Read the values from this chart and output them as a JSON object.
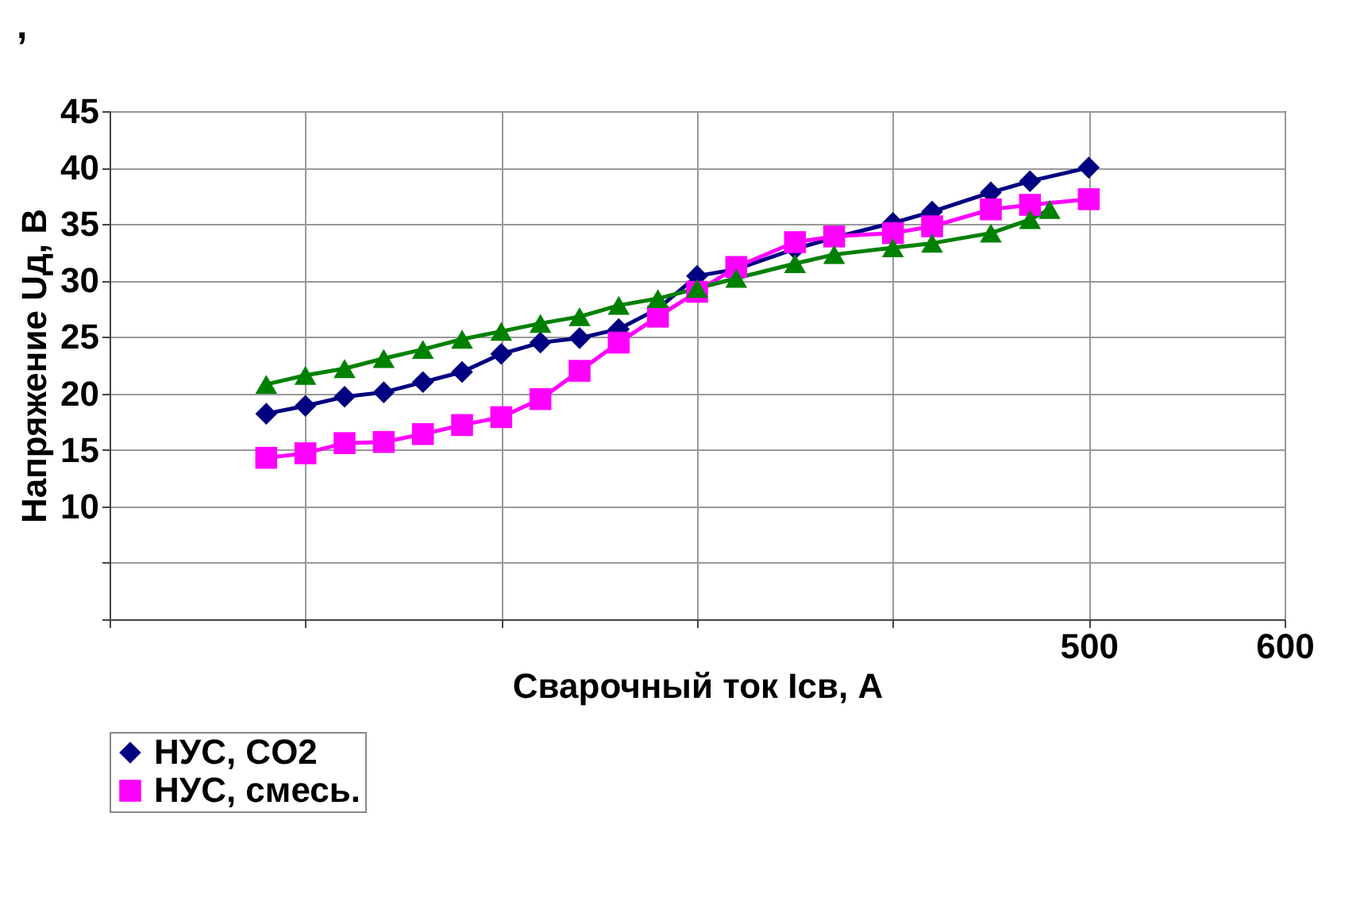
{
  "chart_data": {
    "type": "line",
    "title": ",",
    "xlabel": "Сварочный ток Iсв, А",
    "ylabel": "Напряжение Uд, В",
    "xlim": [
      0,
      600
    ],
    "xticks": [
      {
        "value": 0,
        "label": null
      },
      {
        "value": 100,
        "label": null
      },
      {
        "value": 200,
        "label": null
      },
      {
        "value": 300,
        "label": null
      },
      {
        "value": 400,
        "label": null
      },
      500,
      600
    ],
    "ylim": [
      0,
      45
    ],
    "yticks": [
      {
        "value": 0,
        "label": null
      },
      {
        "value": 5,
        "label": null
      },
      10,
      15,
      20,
      25,
      30,
      35,
      40,
      45
    ],
    "grid": true,
    "legend": "bottom",
    "line_style": "solid",
    "series": [
      {
        "name": "НУС, CO2",
        "color": "#000080",
        "marker": "diamond",
        "x": [
          80,
          100,
          120,
          140,
          160,
          180,
          200,
          220,
          240,
          260,
          280,
          300,
          320,
          350,
          370,
          400,
          420,
          450,
          470,
          500
        ],
        "values": [
          18.2,
          18.9,
          19.7,
          20.1,
          21.0,
          21.9,
          23.5,
          24.5,
          24.9,
          25.7,
          27.5,
          30.4,
          31.0,
          32.8,
          33.8,
          35.1,
          36.1,
          37.8,
          38.8,
          40.0
        ]
      },
      {
        "name": "НУС, смесь.",
        "color": "#ff00ff",
        "marker": "square",
        "x": [
          80,
          100,
          120,
          140,
          160,
          180,
          200,
          220,
          240,
          260,
          280,
          300,
          320,
          350,
          370,
          400,
          420,
          450,
          470,
          500
        ],
        "values": [
          14.3,
          14.7,
          15.6,
          15.7,
          16.4,
          17.2,
          17.9,
          19.5,
          22.0,
          24.5,
          26.8,
          29.0,
          31.2,
          33.4,
          33.9,
          34.2,
          34.8,
          36.3,
          36.7,
          37.2
        ]
      },
      {
        "color": "#008000",
        "marker": "triangle",
        "x": [
          80,
          100,
          120,
          140,
          160,
          180,
          200,
          220,
          240,
          260,
          280,
          300,
          320,
          350,
          370,
          400,
          420,
          450,
          470,
          480
        ],
        "values": [
          20.8,
          21.6,
          22.2,
          23.1,
          23.9,
          24.8,
          25.5,
          26.2,
          26.8,
          27.8,
          28.4,
          29.3,
          30.2,
          31.5,
          32.3,
          32.9,
          33.3,
          34.2,
          35.4,
          36.3
        ]
      }
    ]
  }
}
